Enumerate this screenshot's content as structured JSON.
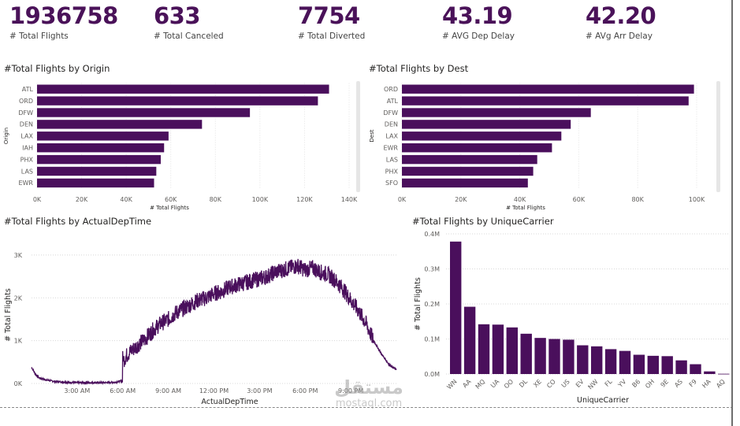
{
  "kpis": [
    {
      "value": "1936758",
      "label": "# Total Flights"
    },
    {
      "value": "633",
      "label": "# Total Canceled"
    },
    {
      "value": "7754",
      "label": "# Total Diverted"
    },
    {
      "value": "43.19",
      "label": "# AVG Dep Delay"
    },
    {
      "value": "42.20",
      "label": "# AVg Arr Delay"
    }
  ],
  "watermark": {
    "arabic": "مستقل",
    "latin": "mostaql.com"
  },
  "colors": {
    "bar": "#4a0f5c",
    "line": "#4a0f5c",
    "kpi": "#4a1259"
  },
  "chart_data": [
    {
      "type": "bar",
      "orientation": "horizontal",
      "title": "#Total Flights by Origin",
      "xlabel": "# Total Flights",
      "ylabel": "Origin",
      "categories": [
        "ATL",
        "ORD",
        "DFW",
        "DEN",
        "LAX",
        "IAH",
        "PHX",
        "LAS",
        "EWR"
      ],
      "values": [
        131000,
        126000,
        95500,
        74000,
        59000,
        57000,
        55500,
        53500,
        52500
      ],
      "xlim": [
        0,
        140000
      ],
      "xticks": [
        "0K",
        "20K",
        "40K",
        "60K",
        "80K",
        "100K",
        "120K",
        "140K"
      ]
    },
    {
      "type": "bar",
      "orientation": "horizontal",
      "title": "#Total Flights by Dest",
      "xlabel": "# Total Flights",
      "ylabel": "Dest",
      "categories": [
        "ORD",
        "ATL",
        "DFW",
        "DEN",
        "LAX",
        "EWR",
        "LAS",
        "PHX",
        "SFO"
      ],
      "values": [
        109000,
        107000,
        70500,
        63000,
        59500,
        56000,
        50500,
        49000,
        47000
      ],
      "xlim": [
        0,
        110000
      ],
      "xticks": [
        "0K",
        "20K",
        "40K",
        "60K",
        "80K",
        "100K"
      ]
    },
    {
      "type": "line",
      "title": "#Total Flights by ActualDepTime",
      "xlabel": "ActualDepTime",
      "ylabel": "# Total Flights",
      "xticks": [
        "3:00 AM",
        "6:00 AM",
        "9:00 AM",
        "12:00 PM",
        "3:00 PM",
        "6:00 PM",
        "9:00 PM"
      ],
      "yticks": [
        "0K",
        "1K",
        "2K",
        "3K"
      ],
      "ylim": [
        0,
        3200
      ],
      "x_hours": [
        0.0,
        0.25,
        0.5,
        1.0,
        1.5,
        2.0,
        2.5,
        3.0,
        3.5,
        4.0,
        4.5,
        5.0,
        5.5,
        5.99,
        6.0,
        6.01,
        6.25,
        6.5,
        6.75,
        7.0,
        7.5,
        8.0,
        8.5,
        9.0,
        9.5,
        10.0,
        10.5,
        11.0,
        11.5,
        12.0,
        12.5,
        13.0,
        13.5,
        14.0,
        14.5,
        15.0,
        15.5,
        16.0,
        16.5,
        17.0,
        17.5,
        18.0,
        18.5,
        19.0,
        19.5,
        20.0,
        20.5,
        21.0,
        21.5,
        22.0,
        22.5,
        23.0,
        23.5,
        23.99
      ],
      "y": [
        380,
        220,
        130,
        80,
        50,
        35,
        25,
        20,
        18,
        18,
        20,
        22,
        30,
        60,
        1000,
        520,
        650,
        750,
        820,
        900,
        1050,
        1250,
        1400,
        1500,
        1650,
        1750,
        1850,
        1950,
        2000,
        2100,
        2150,
        2250,
        2300,
        2350,
        2400,
        2450,
        2500,
        2600,
        2650,
        2700,
        2750,
        2650,
        2700,
        2600,
        2550,
        2400,
        2200,
        1950,
        1700,
        1400,
        1000,
        700,
        450,
        320
      ]
    },
    {
      "type": "bar",
      "title": "#Total Flights by UniqueCarrier",
      "xlabel": "UniqueCarrier",
      "ylabel": "# Total Flights",
      "categories": [
        "WN",
        "AA",
        "MQ",
        "UA",
        "OO",
        "DL",
        "XE",
        "CO",
        "US",
        "EV",
        "NW",
        "FL",
        "YV",
        "B6",
        "OH",
        "9E",
        "AS",
        "F9",
        "HA",
        "AQ"
      ],
      "values": [
        378000,
        192000,
        142000,
        141000,
        133000,
        115000,
        103000,
        100000,
        98000,
        82000,
        79000,
        71000,
        66000,
        55000,
        52000,
        51000,
        39000,
        28000,
        7500,
        750
      ],
      "ylim": [
        0,
        400000
      ],
      "yticks": [
        "0.0M",
        "0.1M",
        "0.2M",
        "0.3M",
        "0.4M"
      ]
    }
  ]
}
